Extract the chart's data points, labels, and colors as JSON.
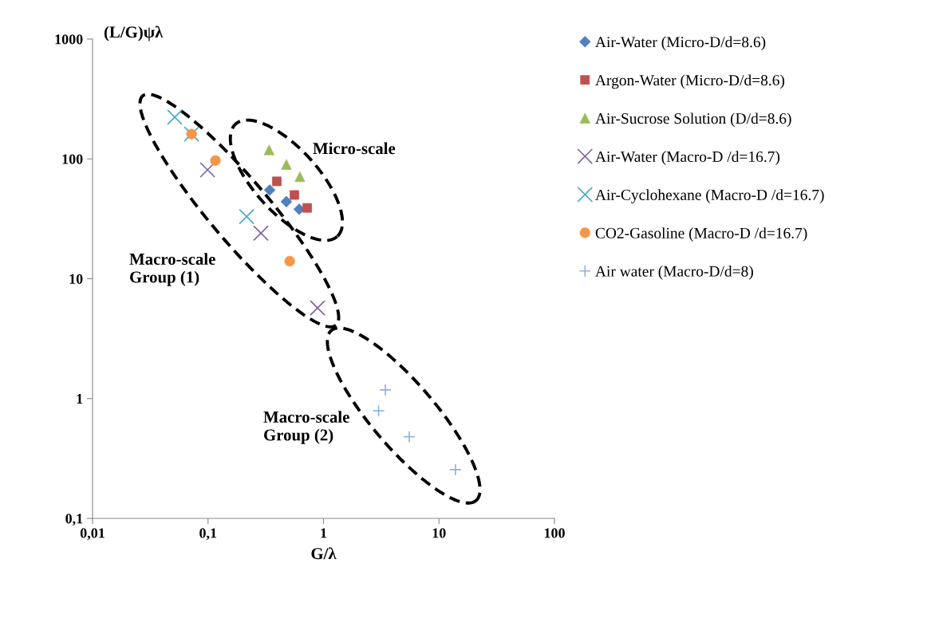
{
  "chart_data": {
    "type": "scatter",
    "xlabel": "G/λ",
    "ylabel": "(L/G)ψλ",
    "log": "xy",
    "grid": false,
    "legend": "right",
    "xlim": [
      0.01,
      100
    ],
    "xticks": [
      {
        "value": 0.01,
        "label": "0,01"
      },
      {
        "value": 0.1,
        "label": "0,1"
      },
      1,
      10,
      100
    ],
    "ylim": [
      0.1,
      1000
    ],
    "yticks": [
      {
        "value": 0.1,
        "label": "0,1"
      },
      1,
      10,
      100,
      1000
    ],
    "annotations": [
      "Micro-scale",
      "Macro-scale\nGroup (1)",
      "Macro-scale\nGroup (2)"
    ],
    "series": [
      {
        "name": "Air-Water (Micro-D/d=8.6)",
        "color": "#4f81bd",
        "marker": "diamond",
        "x": [
          0.342,
          0.477,
          0.616
        ],
        "values": [
          55,
          44,
          38
        ]
      },
      {
        "name": "Argon-Water (Micro-D/d=8.6)",
        "color": "#c0504d",
        "marker": "square",
        "x": [
          0.394,
          0.56,
          0.722
        ],
        "values": [
          65,
          50,
          39
        ]
      },
      {
        "name": "Air-Sucrose Solution (D/d=8.6)",
        "color": "#9bbb59",
        "marker": "triangle",
        "x": [
          0.338,
          0.477,
          0.624
        ],
        "values": [
          119,
          90,
          71
        ]
      },
      {
        "name": "Air-Water (Macro-D /d=16.7)",
        "color": "#8064a2",
        "marker": "cross",
        "x": [
          0.099,
          0.287,
          0.888
        ],
        "values": [
          81,
          24,
          5.7
        ]
      },
      {
        "name": "Air-Cyclohexane (Macro-D /d=16.7)",
        "color": "#4bacc6",
        "marker": "cross",
        "x": [
          0.0515,
          0.072,
          0.216
        ],
        "values": [
          223,
          161,
          33
        ]
      },
      {
        "name": "CO2-Gasoline (Macro-D /d=16.7)",
        "color": "#f79646",
        "marker": "circle",
        "x": [
          0.072,
          0.116,
          0.51
        ],
        "values": [
          161,
          97,
          14
        ]
      },
      {
        "name": "Air water (Macro-D/d=8)",
        "color": "#95b3d7",
        "marker": "plus",
        "x": [
          3.43,
          3.0,
          5.53,
          13.9
        ],
        "values": [
          1.18,
          0.79,
          0.48,
          0.255
        ]
      }
    ]
  }
}
